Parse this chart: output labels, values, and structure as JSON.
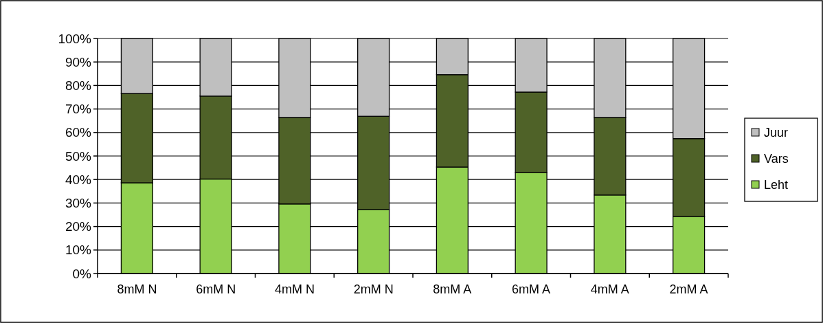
{
  "chart_data": {
    "type": "bar",
    "stacked": true,
    "categories": [
      "8mM N",
      "6mM N",
      "4mM N",
      "2mM N",
      "8mM A",
      "6mM A",
      "4mM A",
      "2mM A"
    ],
    "series": [
      {
        "name": "Leht",
        "color": "#92d050",
        "values": [
          38.6,
          40.2,
          29.6,
          27.3,
          45.3,
          42.9,
          33.4,
          24.3
        ]
      },
      {
        "name": "Vars",
        "color": "#4f6228",
        "values": [
          38.0,
          35.3,
          36.8,
          39.6,
          39.3,
          34.3,
          33.0,
          33.1
        ]
      },
      {
        "name": "Juur",
        "color": "#bfbfbf",
        "values": [
          23.4,
          24.5,
          33.6,
          33.1,
          15.4,
          22.8,
          33.6,
          42.6
        ]
      }
    ],
    "ylim": [
      0,
      100
    ],
    "yticks": [
      {
        "value": 0,
        "label": "0%"
      },
      {
        "value": 10,
        "label": "10%"
      },
      {
        "value": 20,
        "label": "20%"
      },
      {
        "value": 30,
        "label": "30%"
      },
      {
        "value": 40,
        "label": "40%"
      },
      {
        "value": 50,
        "label": "50%"
      },
      {
        "value": 60,
        "label": "60%"
      },
      {
        "value": 70,
        "label": "70%"
      },
      {
        "value": 80,
        "label": "80%"
      },
      {
        "value": 90,
        "label": "90%"
      },
      {
        "value": 100,
        "label": "100%"
      }
    ],
    "grid": "y",
    "legend": "right"
  }
}
